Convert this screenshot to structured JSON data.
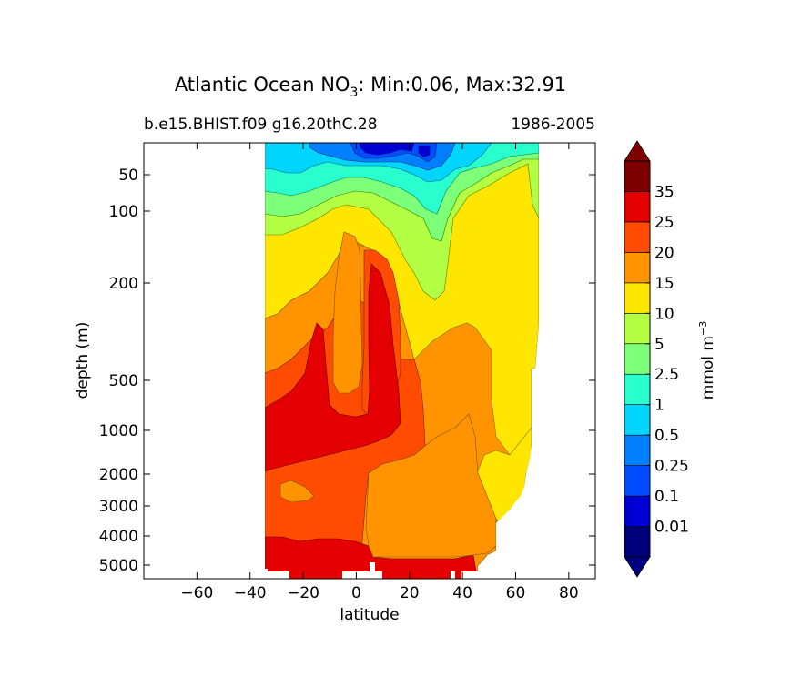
{
  "chart_data": {
    "type": "contour",
    "title_main": "Atlantic Ocean NO",
    "title_sub": "3",
    "title_rest": ": Min:0.06, Max:32.91",
    "case_label": "b.e15.BHIST.f09 g16.20thC.28",
    "period_label": "1986-2005",
    "xlabel": "latitude",
    "ylabel": "depth (m)",
    "xlim": [
      -80,
      90
    ],
    "x_ticks": [
      -60,
      -40,
      -20,
      0,
      20,
      40,
      60,
      80
    ],
    "x_tick_labels": [
      "−60",
      "−40",
      "−20",
      "0",
      "20",
      "40",
      "60",
      "80"
    ],
    "y_ticks": [
      50,
      100,
      200,
      500,
      1000,
      2000,
      3000,
      4000,
      5000
    ],
    "y_tick_labels": [
      "50",
      "100",
      "200",
      "500",
      "1000",
      "2000",
      "3000",
      "4000",
      "5000"
    ],
    "y_scale": "nonlinear (depth increases downward)",
    "colorbar": {
      "label": "mmol m",
      "label_sup": "−3",
      "extend": "both",
      "levels": [
        "0.01",
        "0.1",
        "0.25",
        "0.5",
        "1",
        "2.5",
        "5",
        "10",
        "15",
        "20",
        "25",
        "35"
      ],
      "colors": [
        "#00007f",
        "#0000d5",
        "#004cff",
        "#0080ff",
        "#00d5ff",
        "#29ffce",
        "#7dff7a",
        "#b3ff44",
        "#ffe600",
        "#ff9400",
        "#ff4c00",
        "#e40000",
        "#7f0000"
      ],
      "under_color": "#000080",
      "over_color": "#800000"
    }
  }
}
